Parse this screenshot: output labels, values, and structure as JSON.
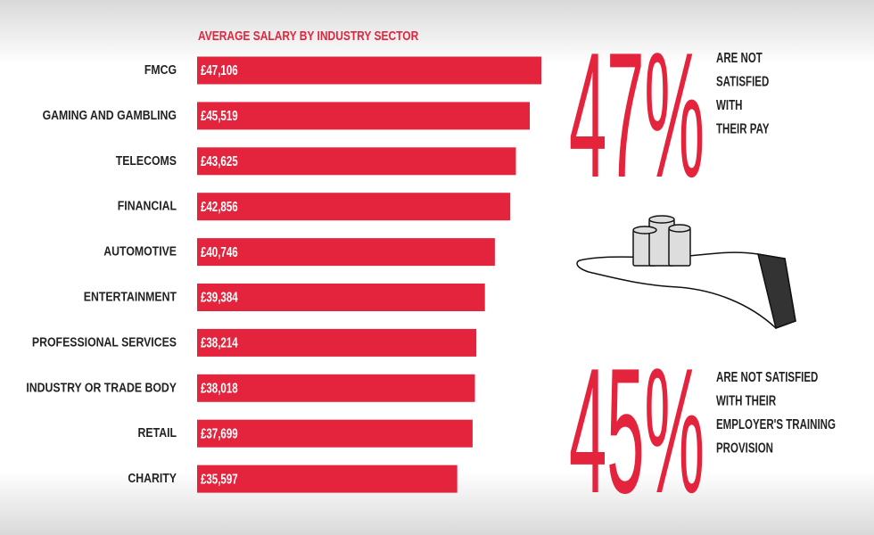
{
  "chart_data": {
    "type": "bar",
    "title": "AVERAGE SALARY BY INDUSTRY SECTOR",
    "categories": [
      "FMCG",
      "GAMING AND GAMBLING",
      "TELECOMS",
      "FINANCIAL",
      "AUTOMOTIVE",
      "ENTERTAINMENT",
      "PROFESSIONAL SERVICES",
      "INDUSTRY OR TRADE BODY",
      "RETAIL",
      "CHARITY"
    ],
    "values": [
      47106,
      45519,
      43625,
      42856,
      40746,
      39384,
      38214,
      38018,
      37699,
      35597
    ],
    "value_labels": [
      "£47,106",
      "£45,519",
      "£43,625",
      "£42,856",
      "£40,746",
      "£39,384",
      "£38,214",
      "£38,018",
      "£37,699",
      "£35,597"
    ],
    "color": "#e4243d"
  },
  "stats": [
    {
      "figure": "47%",
      "lines": [
        "ARE NOT",
        "SATISFIED",
        "WITH",
        "THEIR PAY"
      ]
    },
    {
      "figure": "45%",
      "lines": [
        "ARE NOT SATISFIED",
        "WITH THEIR",
        "EMPLOYER'S TRAINING",
        "PROVISION"
      ]
    }
  ]
}
